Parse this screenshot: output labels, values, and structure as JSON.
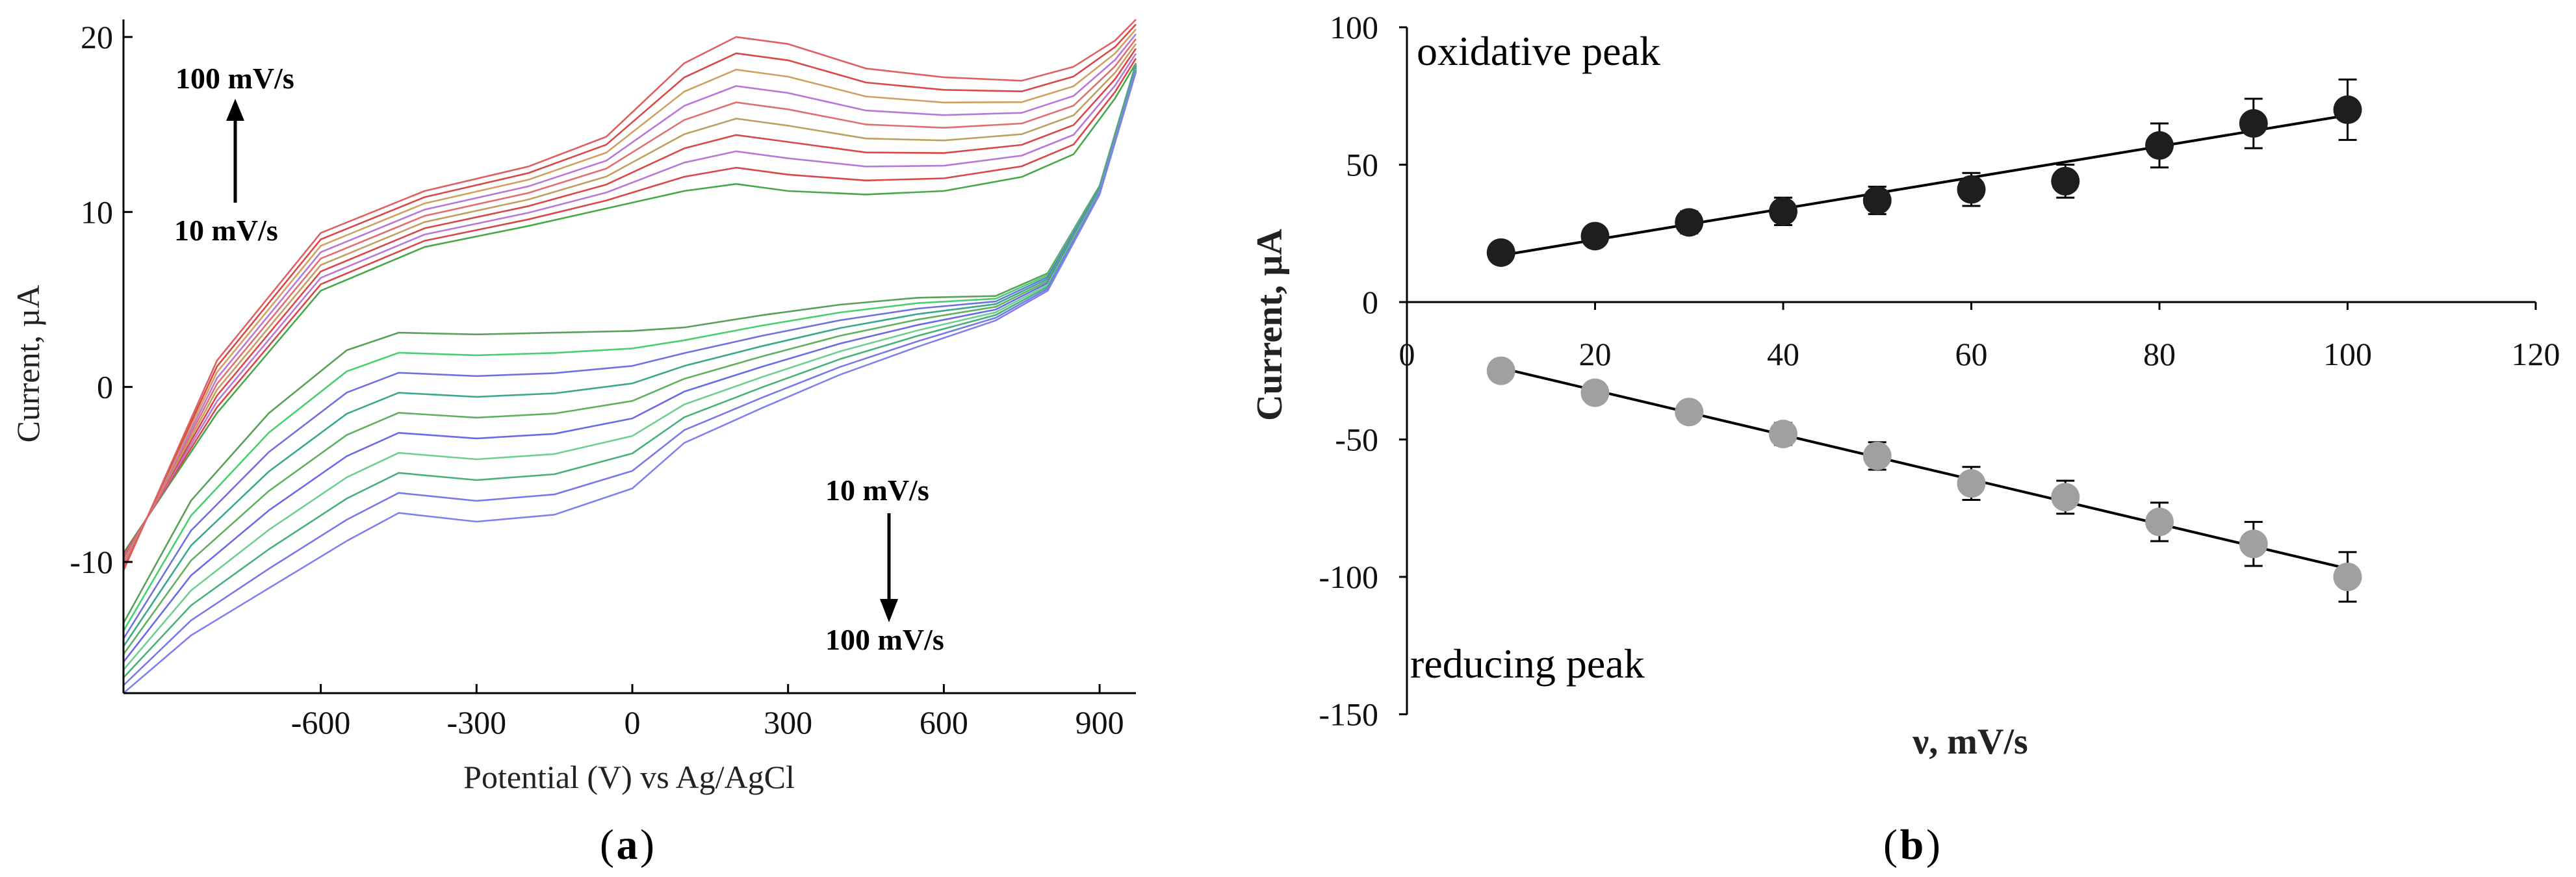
{
  "chart_data": [
    {
      "type": "line",
      "panel": "a",
      "caption_open": "(",
      "caption_letter": "a",
      "caption_close": ")",
      "xlabel": "Potential (V) vs Ag/AgCl",
      "ylabel": "Current, µA",
      "xlim": [
        -980,
        970
      ],
      "ylim": [
        -17.5,
        21
      ],
      "xticks": [
        -600,
        -300,
        0,
        300,
        600,
        900
      ],
      "xtick_labels": [
        "-600",
        "-300",
        "0",
        "300",
        "600",
        "900"
      ],
      "yticks": [
        20,
        10,
        0,
        -10
      ],
      "ytick_labels": [
        "20",
        "10",
        "0",
        "-10"
      ],
      "scan_rates_mV_s": [
        10,
        20,
        30,
        40,
        50,
        60,
        70,
        80,
        90,
        100
      ],
      "anodic_branch_base": [
        [
          -980,
          -9.5
        ],
        [
          -800,
          -1.5
        ],
        [
          -600,
          5.5
        ],
        [
          -400,
          8
        ],
        [
          -200,
          9.2
        ],
        [
          -50,
          10.2
        ],
        [
          100,
          11.2
        ],
        [
          200,
          11.6
        ],
        [
          300,
          11.2
        ],
        [
          450,
          11
        ],
        [
          600,
          11.2
        ],
        [
          750,
          12
        ],
        [
          850,
          13.3
        ],
        [
          930,
          16.5
        ],
        [
          970,
          18.5
        ]
      ],
      "anodic_branch_top": [
        [
          -980,
          -10.5
        ],
        [
          -800,
          1.5
        ],
        [
          -600,
          8.8
        ],
        [
          -400,
          11.2
        ],
        [
          -200,
          12.6
        ],
        [
          -50,
          14.3
        ],
        [
          100,
          18.5
        ],
        [
          200,
          20
        ],
        [
          300,
          19.6
        ],
        [
          450,
          18.2
        ],
        [
          600,
          17.7
        ],
        [
          750,
          17.5
        ],
        [
          850,
          18.3
        ],
        [
          930,
          19.8
        ],
        [
          970,
          21
        ]
      ],
      "cathodic_branch_base": [
        [
          970,
          18.5
        ],
        [
          900,
          11.5
        ],
        [
          800,
          6.5
        ],
        [
          700,
          5.2
        ],
        [
          550,
          5.1
        ],
        [
          400,
          4.7
        ],
        [
          250,
          4.1
        ],
        [
          100,
          3.4
        ],
        [
          0,
          3.2
        ],
        [
          -150,
          3.1
        ],
        [
          -300,
          3
        ],
        [
          -450,
          3.1
        ],
        [
          -550,
          2.1
        ],
        [
          -700,
          -1.5
        ],
        [
          -850,
          -6.5
        ],
        [
          -980,
          -13.5
        ]
      ],
      "cathodic_branch_top": [
        [
          970,
          18
        ],
        [
          900,
          11
        ],
        [
          800,
          5.5
        ],
        [
          700,
          3.8
        ],
        [
          550,
          2.3
        ],
        [
          400,
          0.7
        ],
        [
          250,
          -1.2
        ],
        [
          100,
          -3.2
        ],
        [
          0,
          -5.8
        ],
        [
          -150,
          -7.3
        ],
        [
          -300,
          -7.7
        ],
        [
          -450,
          -7.2
        ],
        [
          -550,
          -8.8
        ],
        [
          -700,
          -11.5
        ],
        [
          -850,
          -14.2
        ],
        [
          -980,
          -17.5
        ]
      ],
      "anodic_colors": [
        "#48a848",
        "#d84848",
        "#b878d8",
        "#d84848",
        "#c0a060",
        "#e07070",
        "#b878d8",
        "#d0a060",
        "#d84848",
        "#e06060"
      ],
      "cathodic_colors": [
        "#5aa05a",
        "#48d070",
        "#7070e0",
        "#3aa890",
        "#60b060",
        "#6a6ae8",
        "#6ed090",
        "#48b078",
        "#7878e8",
        "#8080f0"
      ],
      "annotations": [
        {
          "text": "100 mV/s",
          "position": "top-left"
        },
        {
          "text": "10 mV/s",
          "position": "upper-left"
        },
        {
          "text": "10 mV/s",
          "position": "lower-right-upper"
        },
        {
          "text": "100 mV/s",
          "position": "lower-right"
        }
      ]
    },
    {
      "type": "scatter",
      "panel": "b",
      "caption_open": "(",
      "caption_letter": "b",
      "caption_close": ")",
      "xlabel": "ν, mV/s",
      "ylabel": "Current, µA",
      "xlim": [
        0,
        120
      ],
      "ylim": [
        -150,
        100
      ],
      "xticks": [
        0,
        20,
        40,
        60,
        80,
        100,
        120
      ],
      "xtick_labels": [
        "0",
        "20",
        "40",
        "60",
        "80",
        "100",
        "120"
      ],
      "yticks": [
        100,
        50,
        0,
        -50,
        -100,
        -150
      ],
      "ytick_labels": [
        "100",
        "50",
        "0",
        "-50",
        "-100",
        "-150"
      ],
      "series": [
        {
          "name": "oxidative peak",
          "color": "#1e1e1e",
          "x": [
            10,
            20,
            30,
            40,
            50,
            60,
            70,
            80,
            90,
            100
          ],
          "y": [
            18,
            24,
            29,
            33,
            37,
            41,
            44,
            57,
            65,
            70
          ],
          "err": [
            2,
            3,
            4,
            5,
            5,
            6,
            6,
            8,
            9,
            11
          ],
          "fit": [
            [
              10,
              17
            ],
            [
              100,
              68
            ]
          ]
        },
        {
          "name": "reducing peak",
          "color": "#a0a0a0",
          "x": [
            10,
            20,
            30,
            40,
            50,
            60,
            70,
            80,
            90,
            100
          ],
          "y": [
            -25,
            -33,
            -40,
            -48,
            -56,
            -66,
            -71,
            -80,
            -88,
            -100
          ],
          "err": [
            2,
            3,
            3,
            4,
            5,
            6,
            6,
            7,
            8,
            9
          ],
          "fit": [
            [
              10,
              -24
            ],
            [
              100,
              -97
            ]
          ]
        }
      ]
    }
  ]
}
